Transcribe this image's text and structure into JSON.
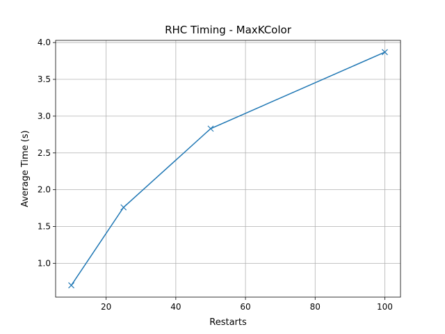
{
  "chart_data": {
    "type": "line",
    "title": "RHC Timing - MaxKColor",
    "xlabel": "Restarts",
    "ylabel": "Average Time (s)",
    "x": [
      10,
      25,
      50,
      100
    ],
    "series": [
      {
        "values": [
          0.7,
          1.76,
          2.83,
          3.87
        ],
        "color": "#1f77b4",
        "marker": "x"
      }
    ],
    "xlim": [
      5.5,
      104.5
    ],
    "ylim": [
      0.54,
      4.03
    ],
    "xticks": [
      20,
      40,
      60,
      80,
      100
    ],
    "xtick_labels": [
      "20",
      "40",
      "60",
      "80",
      "100"
    ],
    "yticks": [
      1.0,
      1.5,
      2.0,
      2.5,
      3.0,
      3.5,
      4.0
    ],
    "ytick_labels": [
      "1.0",
      "1.5",
      "2.0",
      "2.5",
      "3.0",
      "3.5",
      "4.0"
    ],
    "grid": true
  }
}
